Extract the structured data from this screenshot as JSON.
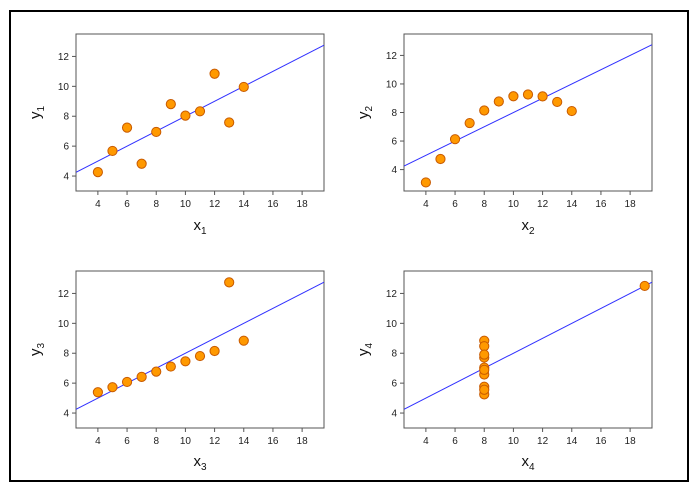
{
  "chart_data": [
    {
      "type": "scatter",
      "title": "",
      "xlabel": "x",
      "xlabel_sub": "1",
      "ylabel": "y",
      "ylabel_sub": "1",
      "xlim": [
        2.5,
        19.5
      ],
      "ylim": [
        3.0,
        13.5
      ],
      "xticks": [
        "4",
        "6",
        "8",
        "10",
        "12",
        "14",
        "16",
        "18"
      ],
      "yticks": [
        "4",
        "6",
        "8",
        "10",
        "12"
      ],
      "points": [
        [
          10,
          8.04
        ],
        [
          8,
          6.95
        ],
        [
          13,
          7.58
        ],
        [
          9,
          8.81
        ],
        [
          11,
          8.33
        ],
        [
          14,
          9.96
        ],
        [
          6,
          7.24
        ],
        [
          4,
          4.26
        ],
        [
          12,
          10.84
        ],
        [
          7,
          4.82
        ],
        [
          5,
          5.68
        ]
      ],
      "fit": {
        "intercept": 3.0,
        "slope": 0.5
      },
      "colors": {
        "point_fill": "#ff9900",
        "point_stroke": "#c85a00",
        "fit_line": "#3030ff"
      },
      "grid": false,
      "legend": "none"
    },
    {
      "type": "scatter",
      "title": "",
      "xlabel": "x",
      "xlabel_sub": "2",
      "ylabel": "y",
      "ylabel_sub": "2",
      "xlim": [
        2.5,
        19.5
      ],
      "ylim": [
        2.5,
        13.5
      ],
      "xticks": [
        "4",
        "6",
        "8",
        "10",
        "12",
        "14",
        "16",
        "18"
      ],
      "yticks": [
        "4",
        "6",
        "8",
        "10",
        "12"
      ],
      "points": [
        [
          10,
          9.14
        ],
        [
          8,
          8.14
        ],
        [
          13,
          8.74
        ],
        [
          9,
          8.77
        ],
        [
          11,
          9.26
        ],
        [
          14,
          8.1
        ],
        [
          6,
          6.13
        ],
        [
          4,
          3.1
        ],
        [
          12,
          9.13
        ],
        [
          7,
          7.26
        ],
        [
          5,
          4.74
        ]
      ],
      "fit": {
        "intercept": 3.0,
        "slope": 0.5
      },
      "colors": {
        "point_fill": "#ff9900",
        "point_stroke": "#c85a00",
        "fit_line": "#3030ff"
      },
      "grid": false,
      "legend": "none"
    },
    {
      "type": "scatter",
      "title": "",
      "xlabel": "x",
      "xlabel_sub": "3",
      "ylabel": "y",
      "ylabel_sub": "3",
      "xlim": [
        2.5,
        19.5
      ],
      "ylim": [
        3.0,
        13.5
      ],
      "xticks": [
        "4",
        "6",
        "8",
        "10",
        "12",
        "14",
        "16",
        "18"
      ],
      "yticks": [
        "4",
        "6",
        "8",
        "10",
        "12"
      ],
      "points": [
        [
          10,
          7.46
        ],
        [
          8,
          6.77
        ],
        [
          13,
          12.74
        ],
        [
          9,
          7.11
        ],
        [
          11,
          7.81
        ],
        [
          14,
          8.84
        ],
        [
          6,
          6.08
        ],
        [
          4,
          5.39
        ],
        [
          12,
          8.15
        ],
        [
          7,
          6.42
        ],
        [
          5,
          5.73
        ]
      ],
      "fit": {
        "intercept": 3.0,
        "slope": 0.5
      },
      "colors": {
        "point_fill": "#ff9900",
        "point_stroke": "#c85a00",
        "fit_line": "#3030ff"
      },
      "grid": false,
      "legend": "none"
    },
    {
      "type": "scatter",
      "title": "",
      "xlabel": "x",
      "xlabel_sub": "4",
      "ylabel": "y",
      "ylabel_sub": "4",
      "xlim": [
        2.5,
        19.5
      ],
      "ylim": [
        3.0,
        13.5
      ],
      "xticks": [
        "4",
        "6",
        "8",
        "10",
        "12",
        "14",
        "16",
        "18"
      ],
      "yticks": [
        "4",
        "6",
        "8",
        "10",
        "12"
      ],
      "points": [
        [
          8,
          6.58
        ],
        [
          8,
          5.76
        ],
        [
          8,
          7.71
        ],
        [
          8,
          8.84
        ],
        [
          8,
          8.47
        ],
        [
          8,
          7.04
        ],
        [
          8,
          5.25
        ],
        [
          19,
          12.5
        ],
        [
          8,
          5.56
        ],
        [
          8,
          7.91
        ],
        [
          8,
          6.89
        ]
      ],
      "fit": {
        "intercept": 3.0,
        "slope": 0.5
      },
      "colors": {
        "point_fill": "#ff9900",
        "point_stroke": "#c85a00",
        "fit_line": "#3030ff"
      },
      "grid": false,
      "legend": "none"
    }
  ]
}
